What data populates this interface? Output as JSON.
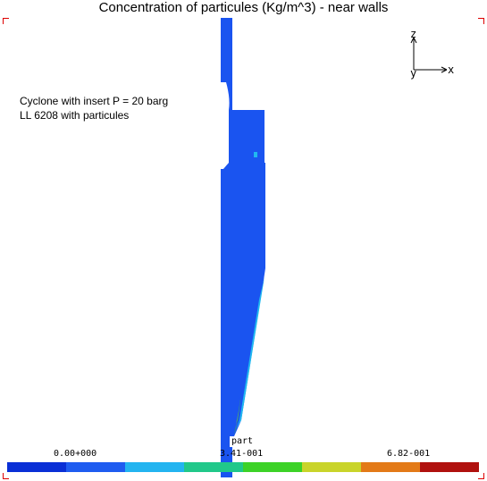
{
  "title": "Concentration of particules (Kg/m^3) - near walls",
  "note": {
    "line1": "Cyclone with insert P = 20 barg",
    "line2": "LL 6208 with particules"
  },
  "axes": {
    "z": "z",
    "y": "y",
    "x": "x"
  },
  "part_label": "part",
  "legend": {
    "ticks": [
      "0.00+000",
      "3.41-001",
      "6.82-001"
    ],
    "colors": [
      "#0a2fd6",
      "#1f5cf0",
      "#23b4f0",
      "#21c88a",
      "#3cd227",
      "#c9d42a",
      "#e37a18",
      "#b0110e"
    ]
  },
  "geometry_colors": {
    "body": "#1a54f0",
    "light_blue": "#20b8f0",
    "green": "#3cd227",
    "yellow": "#c9d42a"
  }
}
